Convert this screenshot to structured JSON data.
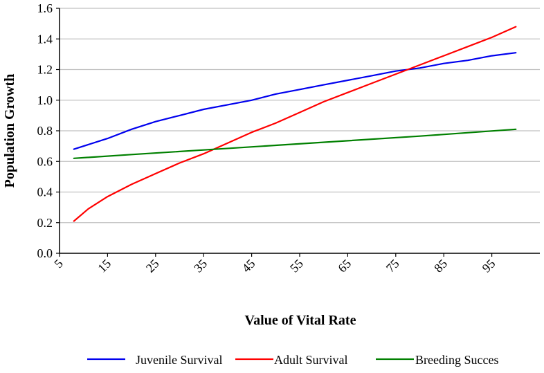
{
  "chart_data": {
    "type": "line",
    "title": "",
    "xlabel": "Value of Vital Rate",
    "ylabel": "Population Growth",
    "xlim": [
      5,
      105
    ],
    "ylim": [
      0,
      1.6
    ],
    "x_ticks": [
      "5",
      "15",
      "25",
      "35",
      "45",
      "55",
      "65",
      "75",
      "85",
      "95"
    ],
    "y_ticks": [
      "0.0",
      "0.2",
      "0.4",
      "0.6",
      "0.8",
      "1.0",
      "1.2",
      "1.4",
      "1.6"
    ],
    "grid": true,
    "legend_position": "bottom",
    "series": [
      {
        "name": "Juvenile Survival",
        "color": "#0000ee",
        "x": [
          8,
          15,
          20,
          25,
          30,
          35,
          40,
          45,
          50,
          55,
          60,
          65,
          70,
          75,
          80,
          85,
          90,
          95,
          100
        ],
        "values": [
          0.68,
          0.75,
          0.81,
          0.86,
          0.9,
          0.94,
          0.97,
          1.0,
          1.04,
          1.07,
          1.1,
          1.13,
          1.16,
          1.19,
          1.21,
          1.24,
          1.26,
          1.29,
          1.31
        ]
      },
      {
        "name": "Adult Survival",
        "color": "#ff0000",
        "x": [
          8,
          11,
          15,
          20,
          25,
          30,
          35,
          40,
          45,
          50,
          55,
          60,
          65,
          70,
          75,
          80,
          85,
          90,
          95,
          100
        ],
        "values": [
          0.21,
          0.29,
          0.37,
          0.45,
          0.52,
          0.59,
          0.65,
          0.72,
          0.79,
          0.85,
          0.92,
          0.99,
          1.05,
          1.11,
          1.17,
          1.23,
          1.29,
          1.35,
          1.41,
          1.48
        ]
      },
      {
        "name": "Breeding Succes",
        "color": "#008000",
        "x": [
          8,
          20,
          35,
          50,
          65,
          80,
          100
        ],
        "values": [
          0.62,
          0.645,
          0.675,
          0.705,
          0.735,
          0.765,
          0.81
        ]
      }
    ]
  }
}
